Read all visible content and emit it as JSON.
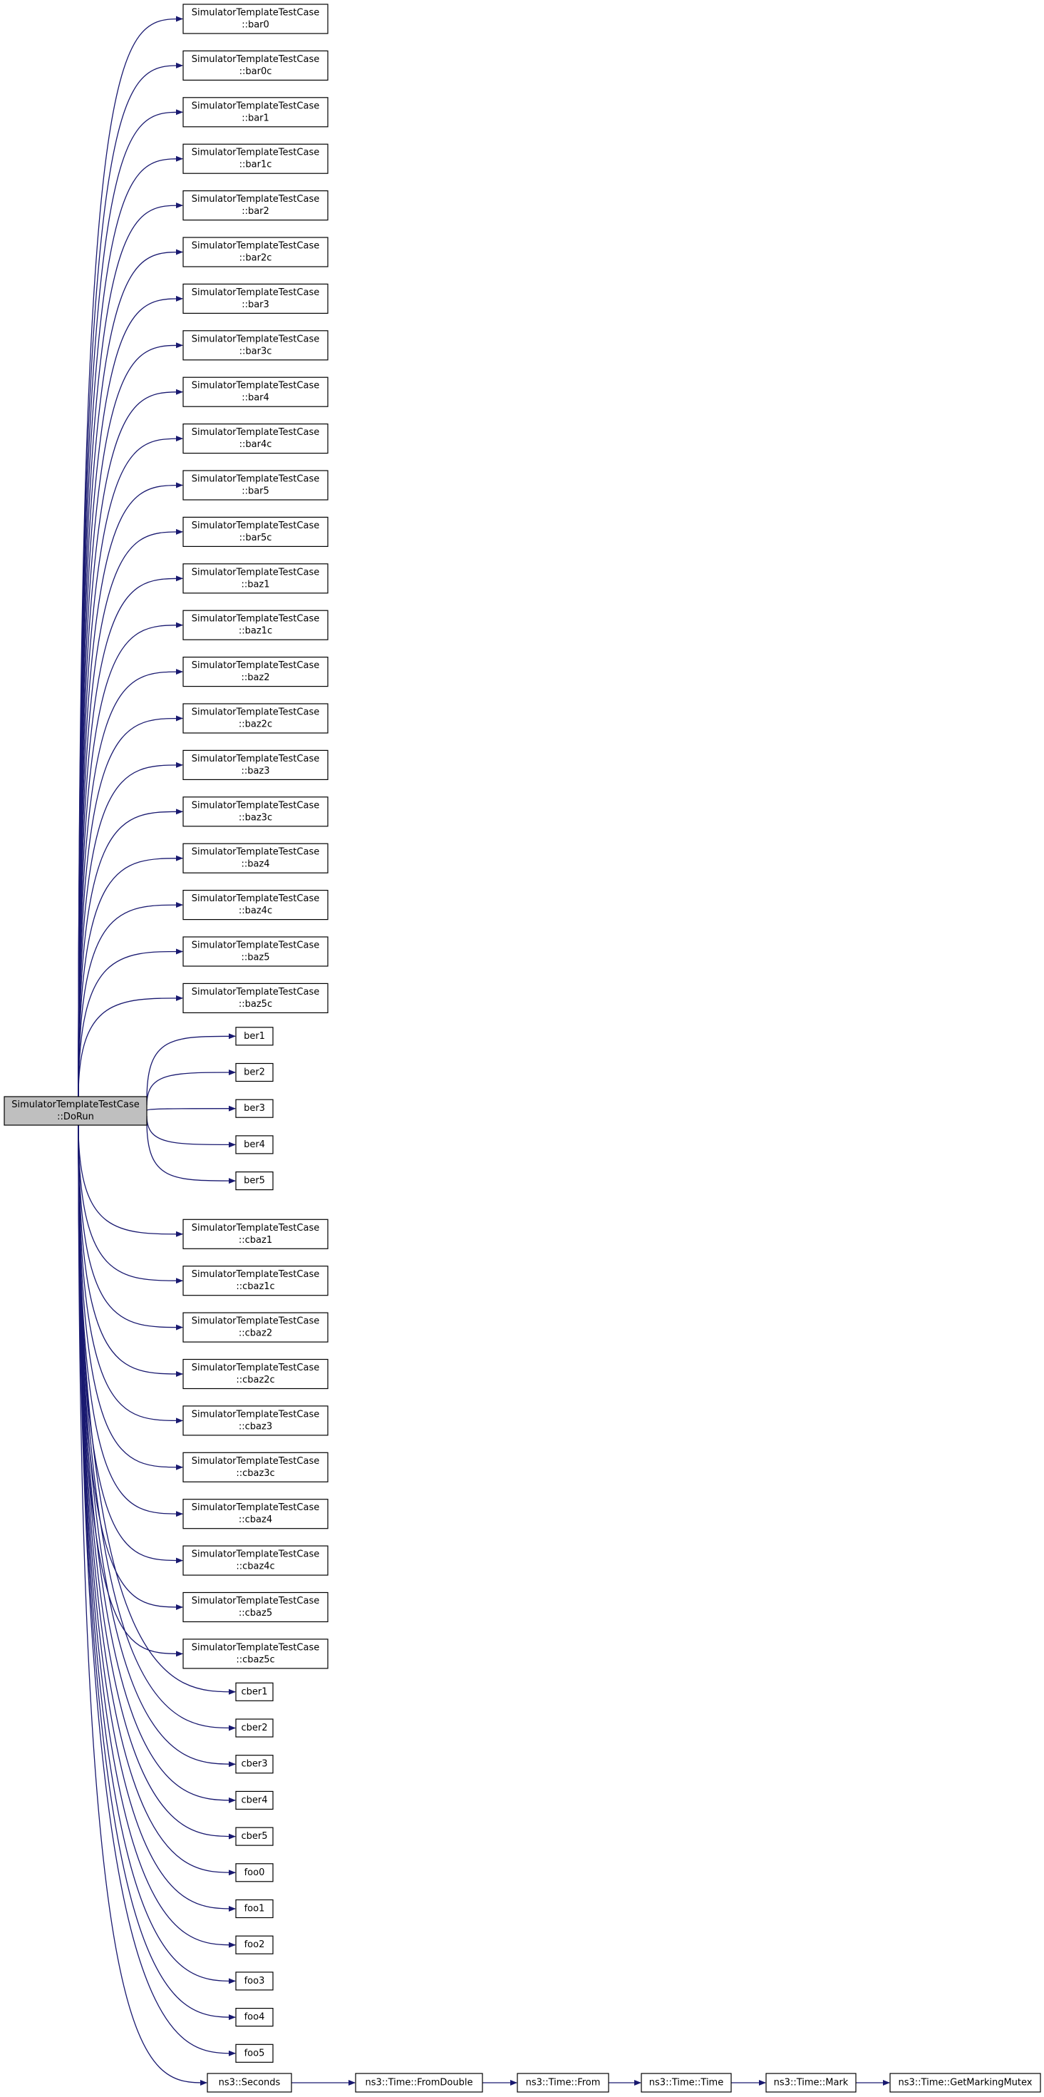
{
  "root": {
    "label": [
      "SimulatorTemplateTestCase",
      "::DoRun"
    ]
  },
  "callees": [
    {
      "label": [
        "SimulatorTemplateTestCase",
        "::bar0"
      ]
    },
    {
      "label": [
        "SimulatorTemplateTestCase",
        "::bar0c"
      ]
    },
    {
      "label": [
        "SimulatorTemplateTestCase",
        "::bar1"
      ]
    },
    {
      "label": [
        "SimulatorTemplateTestCase",
        "::bar1c"
      ]
    },
    {
      "label": [
        "SimulatorTemplateTestCase",
        "::bar2"
      ]
    },
    {
      "label": [
        "SimulatorTemplateTestCase",
        "::bar2c"
      ]
    },
    {
      "label": [
        "SimulatorTemplateTestCase",
        "::bar3"
      ]
    },
    {
      "label": [
        "SimulatorTemplateTestCase",
        "::bar3c"
      ]
    },
    {
      "label": [
        "SimulatorTemplateTestCase",
        "::bar4"
      ]
    },
    {
      "label": [
        "SimulatorTemplateTestCase",
        "::bar4c"
      ]
    },
    {
      "label": [
        "SimulatorTemplateTestCase",
        "::bar5"
      ]
    },
    {
      "label": [
        "SimulatorTemplateTestCase",
        "::bar5c"
      ]
    },
    {
      "label": [
        "SimulatorTemplateTestCase",
        "::baz1"
      ]
    },
    {
      "label": [
        "SimulatorTemplateTestCase",
        "::baz1c"
      ]
    },
    {
      "label": [
        "SimulatorTemplateTestCase",
        "::baz2"
      ]
    },
    {
      "label": [
        "SimulatorTemplateTestCase",
        "::baz2c"
      ]
    },
    {
      "label": [
        "SimulatorTemplateTestCase",
        "::baz3"
      ]
    },
    {
      "label": [
        "SimulatorTemplateTestCase",
        "::baz3c"
      ]
    },
    {
      "label": [
        "SimulatorTemplateTestCase",
        "::baz4"
      ]
    },
    {
      "label": [
        "SimulatorTemplateTestCase",
        "::baz4c"
      ]
    },
    {
      "label": [
        "SimulatorTemplateTestCase",
        "::baz5"
      ]
    },
    {
      "label": [
        "SimulatorTemplateTestCase",
        "::baz5c"
      ]
    },
    {
      "label": [
        "ber1"
      ]
    },
    {
      "label": [
        "ber2"
      ]
    },
    {
      "label": [
        "ber3"
      ]
    },
    {
      "label": [
        "ber4"
      ]
    },
    {
      "label": [
        "ber5"
      ]
    },
    {
      "label": [
        "SimulatorTemplateTestCase",
        "::cbaz1"
      ]
    },
    {
      "label": [
        "SimulatorTemplateTestCase",
        "::cbaz1c"
      ]
    },
    {
      "label": [
        "SimulatorTemplateTestCase",
        "::cbaz2"
      ]
    },
    {
      "label": [
        "SimulatorTemplateTestCase",
        "::cbaz2c"
      ]
    },
    {
      "label": [
        "SimulatorTemplateTestCase",
        "::cbaz3"
      ]
    },
    {
      "label": [
        "SimulatorTemplateTestCase",
        "::cbaz3c"
      ]
    },
    {
      "label": [
        "SimulatorTemplateTestCase",
        "::cbaz4"
      ]
    },
    {
      "label": [
        "SimulatorTemplateTestCase",
        "::cbaz4c"
      ]
    },
    {
      "label": [
        "SimulatorTemplateTestCase",
        "::cbaz5"
      ]
    },
    {
      "label": [
        "SimulatorTemplateTestCase",
        "::cbaz5c"
      ]
    },
    {
      "label": [
        "cber1"
      ]
    },
    {
      "label": [
        "cber2"
      ]
    },
    {
      "label": [
        "cber3"
      ]
    },
    {
      "label": [
        "cber4"
      ]
    },
    {
      "label": [
        "cber5"
      ]
    },
    {
      "label": [
        "foo0"
      ]
    },
    {
      "label": [
        "foo1"
      ]
    },
    {
      "label": [
        "foo2"
      ]
    },
    {
      "label": [
        "foo3"
      ]
    },
    {
      "label": [
        "foo4"
      ]
    },
    {
      "label": [
        "foo5"
      ]
    }
  ],
  "chain": [
    {
      "label": [
        "ns3::Seconds"
      ]
    },
    {
      "label": [
        "ns3::Time::FromDouble"
      ]
    },
    {
      "label": [
        "ns3::Time::From"
      ]
    },
    {
      "label": [
        "ns3::Time::Time"
      ]
    },
    {
      "label": [
        "ns3::Time::Mark"
      ]
    },
    {
      "label": [
        "ns3::Time::GetMarkingMutex"
      ]
    }
  ]
}
